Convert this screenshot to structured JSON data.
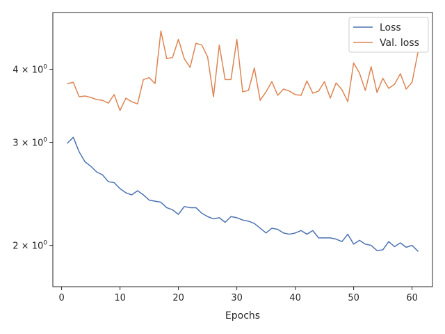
{
  "chart_data": {
    "type": "line",
    "title": "",
    "xlabel": "Epochs",
    "ylabel": "",
    "xlim": [
      -1.5,
      63.5
    ],
    "ylim": [
      1.7,
      5.0
    ],
    "yscale": "log",
    "grid": false,
    "legend_position": "top-right",
    "x_ticks": [
      0,
      10,
      20,
      30,
      40,
      50,
      60
    ],
    "y_ticks": [
      2,
      3,
      4
    ],
    "y_tick_labels": [
      {
        "base": "2 × 10",
        "exp": "0"
      },
      {
        "base": "3 × 10",
        "exp": "0"
      },
      {
        "base": "4 × 10",
        "exp": "0"
      }
    ],
    "x": [
      1,
      2,
      3,
      4,
      5,
      6,
      7,
      8,
      9,
      10,
      11,
      12,
      13,
      14,
      15,
      16,
      17,
      18,
      19,
      20,
      21,
      22,
      23,
      24,
      25,
      26,
      27,
      28,
      29,
      30,
      31,
      32,
      33,
      34,
      35,
      36,
      37,
      38,
      39,
      40,
      41,
      42,
      43,
      44,
      45,
      46,
      47,
      48,
      49,
      50,
      51,
      52,
      53,
      54,
      55,
      56,
      57,
      58,
      59,
      60,
      61
    ],
    "series": [
      {
        "name": "Loss",
        "color": "#4c72b0",
        "values": [
          2.99,
          3.06,
          2.89,
          2.78,
          2.73,
          2.67,
          2.64,
          2.57,
          2.56,
          2.5,
          2.46,
          2.44,
          2.48,
          2.44,
          2.39,
          2.38,
          2.37,
          2.32,
          2.3,
          2.26,
          2.33,
          2.32,
          2.32,
          2.27,
          2.24,
          2.22,
          2.23,
          2.19,
          2.24,
          2.23,
          2.21,
          2.2,
          2.18,
          2.14,
          2.1,
          2.14,
          2.13,
          2.1,
          2.09,
          2.1,
          2.12,
          2.09,
          2.12,
          2.06,
          2.06,
          2.06,
          2.05,
          2.03,
          2.09,
          2.01,
          2.04,
          2.01,
          2.0,
          1.96,
          1.965,
          2.03,
          1.99,
          2.02,
          1.985,
          2.0,
          1.955
        ]
      },
      {
        "name": "Val. loss",
        "color": "#dd8452",
        "values": [
          3.78,
          3.8,
          3.59,
          3.6,
          3.58,
          3.55,
          3.54,
          3.5,
          3.62,
          3.4,
          3.57,
          3.52,
          3.49,
          3.84,
          3.87,
          3.78,
          4.65,
          4.17,
          4.19,
          4.5,
          4.17,
          4.03,
          4.43,
          4.4,
          4.2,
          3.59,
          4.4,
          3.84,
          3.84,
          4.5,
          3.66,
          3.68,
          4.02,
          3.54,
          3.66,
          3.81,
          3.61,
          3.7,
          3.67,
          3.62,
          3.61,
          3.82,
          3.64,
          3.67,
          3.81,
          3.57,
          3.79,
          3.69,
          3.52,
          4.1,
          3.94,
          3.68,
          4.04,
          3.65,
          3.86,
          3.71,
          3.77,
          3.93,
          3.7,
          3.8,
          4.27
        ]
      }
    ]
  }
}
